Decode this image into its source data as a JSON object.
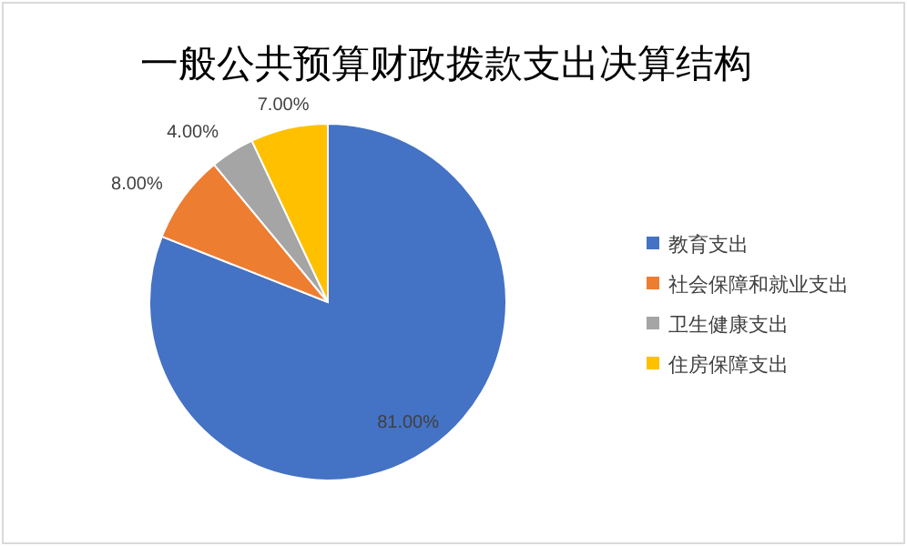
{
  "chart_data": {
    "type": "pie",
    "title": "一般公共预算财政拨款支出决算结构",
    "categories": [
      "教育支出",
      "社会保障和就业支出",
      "卫生健康支出",
      "住房保障支出"
    ],
    "values": [
      81,
      8,
      4,
      7
    ],
    "colors": [
      "#4472c4",
      "#ed7d31",
      "#a5a5a5",
      "#ffc000"
    ],
    "value_labels": [
      "81.00%",
      "8.00%",
      "4.00%",
      "7.00%"
    ],
    "legend": "right"
  }
}
